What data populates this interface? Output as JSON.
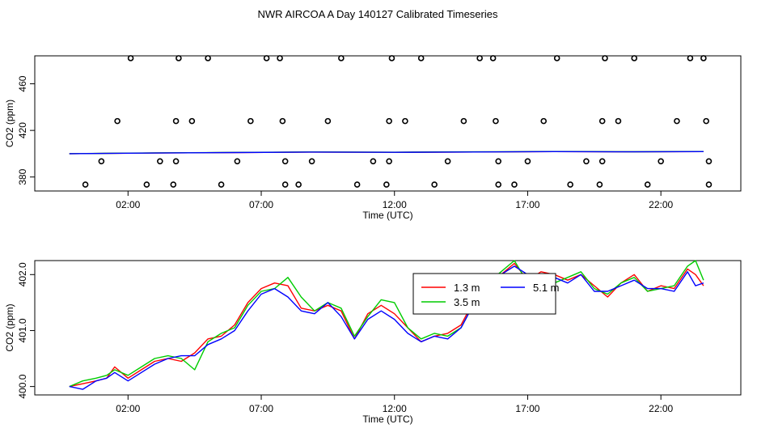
{
  "title": "NWR AIRCOA A  Day 140127  Calibrated Timeseries",
  "chart_data": [
    {
      "type": "scatter",
      "xlabel": "Time (UTC)",
      "ylabel": "CO2 (ppm)",
      "xlim": [
        -1.5,
        25
      ],
      "ylim": [
        368,
        484
      ],
      "x_ticks": [
        {
          "v": 2,
          "label": "02:00"
        },
        {
          "v": 7,
          "label": "07:00"
        },
        {
          "v": 12,
          "label": "12:00"
        },
        {
          "v": 17,
          "label": "17:00"
        },
        {
          "v": 22,
          "label": "22:00"
        }
      ],
      "y_ticks": [
        380,
        420,
        460
      ],
      "points": [
        {
          "x": 0.4,
          "y": 373.5
        },
        {
          "x": 1.0,
          "y": 393.5
        },
        {
          "x": 1.6,
          "y": 428
        },
        {
          "x": 2.1,
          "y": 482
        },
        {
          "x": 2.7,
          "y": 373.5
        },
        {
          "x": 3.2,
          "y": 393.5
        },
        {
          "x": 3.7,
          "y": 373.5
        },
        {
          "x": 3.8,
          "y": 393.5
        },
        {
          "x": 3.8,
          "y": 428
        },
        {
          "x": 3.9,
          "y": 482
        },
        {
          "x": 4.4,
          "y": 428
        },
        {
          "x": 5.0,
          "y": 482
        },
        {
          "x": 5.5,
          "y": 373.5
        },
        {
          "x": 6.1,
          "y": 393.5
        },
        {
          "x": 6.6,
          "y": 428
        },
        {
          "x": 7.2,
          "y": 482
        },
        {
          "x": 7.7,
          "y": 482
        },
        {
          "x": 7.8,
          "y": 428
        },
        {
          "x": 7.9,
          "y": 393.5
        },
        {
          "x": 7.9,
          "y": 373.5
        },
        {
          "x": 8.4,
          "y": 373.5
        },
        {
          "x": 8.9,
          "y": 393.5
        },
        {
          "x": 9.5,
          "y": 428
        },
        {
          "x": 10.0,
          "y": 482
        },
        {
          "x": 10.6,
          "y": 373.5
        },
        {
          "x": 11.2,
          "y": 393.5
        },
        {
          "x": 11.7,
          "y": 373.5
        },
        {
          "x": 11.8,
          "y": 393.5
        },
        {
          "x": 11.8,
          "y": 428
        },
        {
          "x": 11.9,
          "y": 482
        },
        {
          "x": 12.4,
          "y": 428
        },
        {
          "x": 13.0,
          "y": 482
        },
        {
          "x": 13.5,
          "y": 373.5
        },
        {
          "x": 14.0,
          "y": 393.5
        },
        {
          "x": 14.6,
          "y": 428
        },
        {
          "x": 15.2,
          "y": 482
        },
        {
          "x": 15.7,
          "y": 482
        },
        {
          "x": 15.8,
          "y": 428
        },
        {
          "x": 15.9,
          "y": 393.5
        },
        {
          "x": 15.9,
          "y": 373.5
        },
        {
          "x": 16.5,
          "y": 373.5
        },
        {
          "x": 17.0,
          "y": 393.5
        },
        {
          "x": 17.6,
          "y": 428
        },
        {
          "x": 18.1,
          "y": 482
        },
        {
          "x": 18.6,
          "y": 373.5
        },
        {
          "x": 19.2,
          "y": 393.5
        },
        {
          "x": 19.7,
          "y": 373.5
        },
        {
          "x": 19.8,
          "y": 393.5
        },
        {
          "x": 19.8,
          "y": 428
        },
        {
          "x": 19.9,
          "y": 482
        },
        {
          "x": 20.4,
          "y": 428
        },
        {
          "x": 21.0,
          "y": 482
        },
        {
          "x": 21.5,
          "y": 373.5
        },
        {
          "x": 22.0,
          "y": 393.5
        },
        {
          "x": 22.6,
          "y": 428
        },
        {
          "x": 23.1,
          "y": 482
        },
        {
          "x": 23.6,
          "y": 482
        },
        {
          "x": 23.7,
          "y": 428
        },
        {
          "x": 23.8,
          "y": 393.5
        },
        {
          "x": 23.8,
          "y": 373.5
        }
      ],
      "series": [
        {
          "color": "#ff0000",
          "x": [
            -0.2,
            3,
            6,
            9,
            12,
            15,
            18,
            21,
            23.6
          ],
          "y": [
            400.0,
            400.6,
            401.0,
            401.4,
            401.2,
            401.5,
            401.8,
            401.6,
            401.8
          ]
        },
        {
          "color": "#00cc00",
          "x": [
            -0.2,
            3,
            6,
            9,
            12,
            15,
            18,
            21,
            23.6
          ],
          "y": [
            400.0,
            400.7,
            401.1,
            401.5,
            401.3,
            401.6,
            401.9,
            401.7,
            401.9
          ]
        },
        {
          "color": "#0000ff",
          "x": [
            -0.2,
            3,
            6,
            9,
            12,
            15,
            18,
            21,
            23.6
          ],
          "y": [
            400.0,
            400.6,
            401.0,
            401.4,
            401.2,
            401.5,
            401.8,
            401.6,
            401.8
          ]
        }
      ]
    },
    {
      "type": "line",
      "xlabel": "Time (UTC)",
      "ylabel": "CO2 (ppm)",
      "xlim": [
        -1.5,
        25
      ],
      "ylim": [
        399.85,
        402.25
      ],
      "x_ticks": [
        {
          "v": 2,
          "label": "02:00"
        },
        {
          "v": 7,
          "label": "07:00"
        },
        {
          "v": 12,
          "label": "12:00"
        },
        {
          "v": 17,
          "label": "17:00"
        },
        {
          "v": 22,
          "label": "22:00"
        }
      ],
      "y_ticks": [
        {
          "v": 400,
          "label": "400.0"
        },
        {
          "v": 401,
          "label": "401.0"
        },
        {
          "v": 402,
          "label": "402.0"
        }
      ],
      "legend": {
        "position": "top-right",
        "entries": [
          {
            "label": "1.3 m",
            "color": "#ff0000"
          },
          {
            "label": "3.5 m",
            "color": "#00cc00"
          },
          {
            "label": "5.1 m",
            "color": "#0000ff"
          }
        ]
      },
      "series": [
        {
          "name": "1.3 m",
          "color": "#ff0000",
          "x": [
            -0.2,
            0.3,
            0.8,
            1.2,
            1.5,
            2.0,
            2.5,
            3.0,
            3.5,
            4.0,
            4.5,
            5.0,
            5.5,
            6.0,
            6.5,
            7.0,
            7.5,
            8.0,
            8.5,
            9.0,
            9.5,
            10.0,
            10.5,
            11.0,
            11.5,
            12.0,
            12.5,
            13.0,
            13.5,
            14.0,
            14.5,
            15.0,
            15.5,
            16.0,
            16.5,
            17.0,
            17.5,
            18.0,
            18.5,
            19.0,
            19.5,
            20.0,
            20.5,
            21.0,
            21.5,
            22.0,
            22.5,
            23.0,
            23.3,
            23.6
          ],
          "y": [
            400.0,
            400.05,
            400.1,
            400.15,
            400.35,
            400.15,
            400.3,
            400.45,
            400.5,
            400.45,
            400.6,
            400.85,
            400.9,
            401.1,
            401.5,
            401.75,
            401.85,
            401.8,
            401.4,
            401.35,
            401.45,
            401.35,
            400.85,
            401.3,
            401.45,
            401.3,
            401.05,
            400.8,
            400.9,
            400.95,
            401.1,
            401.55,
            401.8,
            402.0,
            402.2,
            401.9,
            402.05,
            402.0,
            401.9,
            402.0,
            401.8,
            401.6,
            401.85,
            402.0,
            401.7,
            401.8,
            401.75,
            402.1,
            402.0,
            401.8
          ]
        },
        {
          "name": "3.5 m",
          "color": "#00cc00",
          "x": [
            -0.2,
            0.3,
            0.8,
            1.2,
            1.5,
            2.0,
            2.5,
            3.0,
            3.5,
            4.0,
            4.5,
            5.0,
            5.5,
            6.0,
            6.5,
            7.0,
            7.5,
            8.0,
            8.5,
            9.0,
            9.5,
            10.0,
            10.5,
            11.0,
            11.5,
            12.0,
            12.5,
            13.0,
            13.5,
            14.0,
            14.5,
            15.0,
            15.5,
            16.0,
            16.5,
            17.0,
            17.5,
            18.0,
            18.5,
            19.0,
            19.5,
            20.0,
            20.5,
            21.0,
            21.5,
            22.0,
            22.5,
            23.0,
            23.3,
            23.6
          ],
          "y": [
            400.0,
            400.1,
            400.15,
            400.2,
            400.3,
            400.2,
            400.35,
            400.5,
            400.55,
            400.5,
            400.3,
            400.8,
            400.95,
            401.05,
            401.45,
            401.7,
            401.75,
            401.95,
            401.6,
            401.35,
            401.5,
            401.4,
            400.9,
            401.25,
            401.55,
            401.5,
            401.05,
            400.85,
            400.95,
            400.9,
            401.05,
            401.5,
            401.85,
            402.05,
            402.25,
            401.85,
            401.95,
            401.85,
            401.95,
            402.05,
            401.75,
            401.65,
            401.85,
            401.95,
            401.7,
            401.75,
            401.8,
            402.15,
            402.25,
            401.9
          ]
        },
        {
          "name": "5.1 m",
          "color": "#0000ff",
          "x": [
            -0.2,
            0.3,
            0.8,
            1.2,
            1.5,
            2.0,
            2.5,
            3.0,
            3.5,
            4.0,
            4.5,
            5.0,
            5.5,
            6.0,
            6.5,
            7.0,
            7.5,
            8.0,
            8.5,
            9.0,
            9.5,
            10.0,
            10.5,
            11.0,
            11.5,
            12.0,
            12.5,
            13.0,
            13.5,
            14.0,
            14.5,
            15.0,
            15.5,
            16.0,
            16.5,
            17.0,
            17.5,
            18.0,
            18.5,
            19.0,
            19.5,
            20.0,
            20.5,
            21.0,
            21.5,
            22.0,
            22.5,
            23.0,
            23.3,
            23.6
          ],
          "y": [
            400.0,
            399.95,
            400.1,
            400.15,
            400.25,
            400.1,
            400.25,
            400.4,
            400.5,
            400.55,
            400.55,
            400.75,
            400.85,
            401.0,
            401.35,
            401.65,
            401.75,
            401.6,
            401.35,
            401.3,
            401.5,
            401.25,
            400.85,
            401.2,
            401.35,
            401.2,
            400.95,
            400.8,
            400.9,
            400.85,
            401.05,
            401.5,
            401.75,
            402.0,
            402.15,
            402.0,
            401.95,
            401.95,
            401.85,
            402.0,
            401.7,
            401.7,
            401.8,
            401.9,
            401.75,
            401.75,
            401.7,
            402.05,
            401.8,
            401.85
          ]
        }
      ]
    }
  ]
}
